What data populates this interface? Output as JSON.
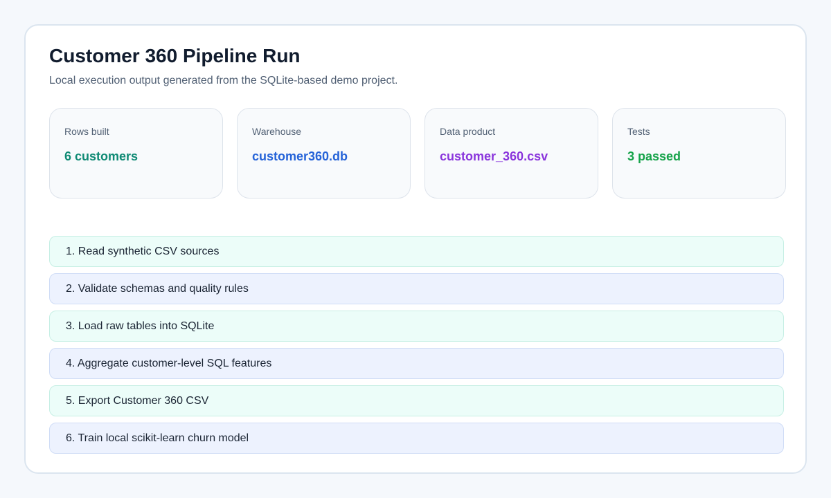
{
  "header": {
    "title": "Customer 360 Pipeline Run",
    "subtitle": "Local execution output generated from the SQLite-based demo project."
  },
  "stats": [
    {
      "label": "Rows built",
      "value": "6 customers"
    },
    {
      "label": "Warehouse",
      "value": "customer360.db"
    },
    {
      "label": "Data product",
      "value": "customer_360.csv"
    },
    {
      "label": "Tests",
      "value": "3 passed"
    }
  ],
  "steps": [
    "1. Read synthetic CSV sources",
    "2. Validate schemas and quality rules",
    "3. Load raw tables into SQLite",
    "4. Aggregate customer-level SQL features",
    "5. Export Customer 360 CSV",
    "6. Train local scikit-learn churn model"
  ]
}
